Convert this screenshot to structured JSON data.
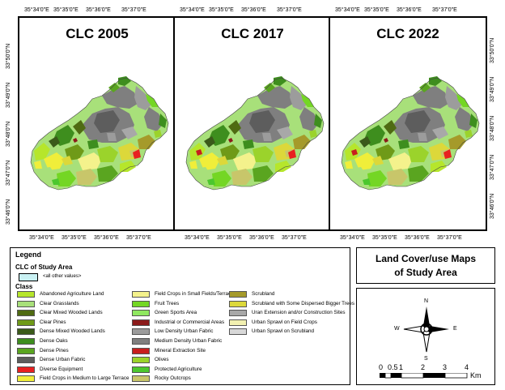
{
  "maps": [
    {
      "title": "CLC 2005"
    },
    {
      "title": "CLC 2017"
    },
    {
      "title": "CLC 2022"
    }
  ],
  "top_ticks": [
    "35°34'0\"E",
    "35°35'0\"E",
    "35°36'0\"E",
    "35°37'0\"E"
  ],
  "bottom_ticks": [
    "35°34'0\"E",
    "35°35'0\"E",
    "35°36'0\"E",
    "35°37'0\"E"
  ],
  "lat_ticks": [
    "33°50'0\"N",
    "33°49'0\"N",
    "33°48'0\"N",
    "33°47'0\"N",
    "33°46'0\"N"
  ],
  "legend": {
    "title": "Legend",
    "subtitle": "CLC of Study Area",
    "all_other": "<all other values>",
    "class_heading": "Class",
    "columns": [
      [
        {
          "label": "Abandoned Agriculture Land",
          "color": "#b6e62b"
        },
        {
          "label": "Clear Grasslands",
          "color": "#a8e07a"
        },
        {
          "label": "Clear Mixed Wooded Lands",
          "color": "#4f6b12"
        },
        {
          "label": "Clear Pines",
          "color": "#6f9a18"
        },
        {
          "label": "Dense Mixed Wooded Lands",
          "color": "#3b5a1a"
        },
        {
          "label": "Dense Oaks",
          "color": "#3e8e1e"
        },
        {
          "label": "Dense Pines",
          "color": "#5aa520"
        },
        {
          "label": "Dense Urban Fabric",
          "color": "#5d5d5d"
        },
        {
          "label": "Diverse Equipment",
          "color": "#e82020"
        },
        {
          "label": "Field Crops in Medium to Large Terrace",
          "color": "#f0ee3a"
        }
      ],
      [
        {
          "label": "Field Crops in Small Fields/Terrace",
          "color": "#f4f28c"
        },
        {
          "label": "Fruit Trees",
          "color": "#74d624"
        },
        {
          "label": "Green Sports Area",
          "color": "#8fe860"
        },
        {
          "label": "Industrial or Commercial Areas",
          "color": "#8b1a1a"
        },
        {
          "label": "Low Density Urban Fabric",
          "color": "#9c9c9c"
        },
        {
          "label": "Medium Density Urban Fabric",
          "color": "#7f7f7f"
        },
        {
          "label": "Mineral Extraction Site",
          "color": "#c81e1e"
        },
        {
          "label": "Olives",
          "color": "#9bd32b"
        },
        {
          "label": "Protected Agriculture",
          "color": "#4cc72e"
        },
        {
          "label": "Rocky Outcrops",
          "color": "#c8c66a"
        }
      ],
      [
        {
          "label": "Scrubland",
          "color": "#a59a2a"
        },
        {
          "label": "Scrubland with Some Dispersed Bigger Trees",
          "color": "#dcd83a"
        },
        {
          "label": "Uran Extension and/or Construction Sites",
          "color": "#a8a8a8"
        },
        {
          "label": "Urban Sprawl on Field Crops",
          "color": "#f2f0b0"
        },
        {
          "label": "Urban Sprawl on Scrubland",
          "color": "#d8d8d8"
        }
      ]
    ]
  },
  "map_title": {
    "line1": "Land Cover/use Maps",
    "line2": "of Study Area"
  },
  "compass": {
    "n": "N",
    "s": "S",
    "e": "E",
    "w": "W"
  },
  "scale": {
    "labels": [
      "0",
      "0.5",
      "1",
      "2",
      "3",
      "4"
    ],
    "unit": "Km"
  }
}
